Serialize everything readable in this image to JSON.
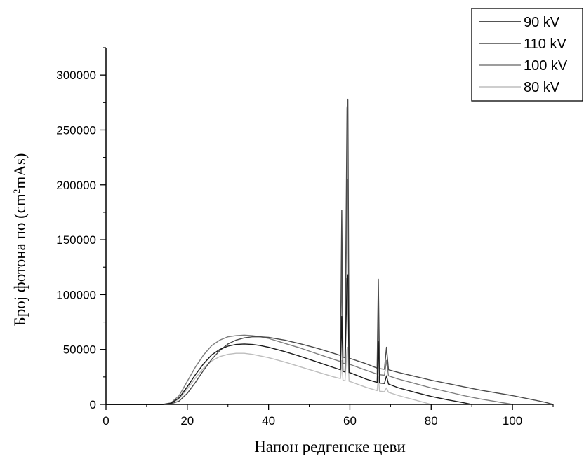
{
  "chart_data": {
    "type": "line",
    "title": "",
    "xlabel": "Напон редгенске цеви",
    "ylabel_main": "Број фотона по (cm",
    "ylabel_sup": "2",
    "ylabel_tail": "mAs)",
    "xlim": [
      0,
      110
    ],
    "ylim": [
      0,
      325000
    ],
    "x_ticks": [
      0,
      20,
      40,
      60,
      80,
      100
    ],
    "y_ticks": [
      0,
      50000,
      100000,
      150000,
      200000,
      250000,
      300000
    ],
    "grid": false,
    "legend_position": "top-right",
    "series": [
      {
        "name": "90 kV",
        "color": "#1a1a1a",
        "x": [
          0,
          14,
          16,
          18,
          20,
          22,
          24,
          26,
          28,
          30,
          32,
          34,
          36,
          38,
          40,
          44,
          48,
          52,
          56,
          57.7,
          58.0,
          58.3,
          58.8,
          59.3,
          59.5,
          59.8,
          60.3,
          64,
          66.7,
          67.0,
          67.3,
          68.5,
          69.0,
          69.5,
          72,
          76,
          80,
          84,
          88,
          90
        ],
        "y": [
          0,
          0,
          1000,
          6000,
          16000,
          27000,
          37000,
          45000,
          50000,
          53000,
          54500,
          55000,
          54500,
          53500,
          52000,
          48000,
          43500,
          38500,
          33500,
          31500,
          80000,
          30000,
          29500,
          115000,
          118000,
          29000,
          28500,
          23000,
          20000,
          57000,
          19500,
          19000,
          26000,
          18500,
          15000,
          11000,
          7200,
          4200,
          1500,
          0
        ]
      },
      {
        "name": "110 kV",
        "color": "#4a4a4a",
        "x": [
          0,
          14,
          16,
          18,
          20,
          22,
          24,
          26,
          28,
          30,
          32,
          34,
          36,
          38,
          40,
          44,
          48,
          52,
          56,
          57.7,
          58.0,
          58.3,
          58.8,
          59.3,
          59.5,
          59.8,
          60.3,
          64,
          66.7,
          67.0,
          67.3,
          68.5,
          69.0,
          69.5,
          72,
          76,
          80,
          84,
          88,
          92,
          96,
          100,
          104,
          108,
          110
        ],
        "y": [
          0,
          0,
          500,
          3000,
          10000,
          20000,
          31000,
          41000,
          49000,
          55000,
          58500,
          60500,
          61500,
          61500,
          61000,
          58500,
          55000,
          51000,
          46500,
          44500,
          177000,
          43000,
          42500,
          270000,
          278000,
          42000,
          41500,
          37000,
          33000,
          114000,
          32500,
          32000,
          52000,
          31500,
          29000,
          25500,
          22000,
          19000,
          16000,
          13000,
          10500,
          8000,
          5000,
          2000,
          0
        ]
      },
      {
        "name": "100 kV",
        "color": "#7d7d7d",
        "x": [
          0,
          14,
          16,
          18,
          20,
          22,
          24,
          26,
          28,
          30,
          32,
          34,
          36,
          38,
          40,
          44,
          48,
          52,
          56,
          57.7,
          58.0,
          58.3,
          58.8,
          59.3,
          59.5,
          59.8,
          60.3,
          64,
          66.7,
          67.0,
          67.3,
          68.5,
          69.0,
          69.5,
          72,
          76,
          80,
          84,
          88,
          92,
          96,
          100
        ],
        "y": [
          0,
          0,
          1500,
          8000,
          21000,
          34000,
          45000,
          53500,
          58500,
          61500,
          62500,
          63000,
          62500,
          61500,
          60000,
          55500,
          51000,
          46000,
          41000,
          39000,
          130000,
          37500,
          37000,
          200000,
          205000,
          36500,
          36000,
          31000,
          27500,
          85000,
          27000,
          26500,
          40000,
          26000,
          23000,
          19000,
          15000,
          11500,
          8000,
          5000,
          2500,
          0
        ]
      },
      {
        "name": "80 kV",
        "color": "#bdbdbd",
        "x": [
          0,
          14,
          16,
          18,
          20,
          22,
          24,
          26,
          28,
          30,
          32,
          34,
          36,
          38,
          40,
          44,
          48,
          52,
          56,
          57.7,
          58.0,
          58.3,
          58.8,
          59.3,
          59.5,
          59.8,
          60.3,
          64,
          66.7,
          67.0,
          67.3,
          68.5,
          69.0,
          69.5,
          72,
          76,
          80
        ],
        "y": [
          0,
          0,
          1000,
          5000,
          14000,
          24000,
          33000,
          39500,
          43500,
          45500,
          46500,
          46500,
          45500,
          44000,
          42500,
          38500,
          34000,
          29500,
          25000,
          23500,
          40000,
          22000,
          21500,
          50000,
          52000,
          21000,
          20500,
          15500,
          12500,
          25000,
          12000,
          11500,
          15000,
          11000,
          8000,
          4000,
          0
        ]
      }
    ]
  }
}
